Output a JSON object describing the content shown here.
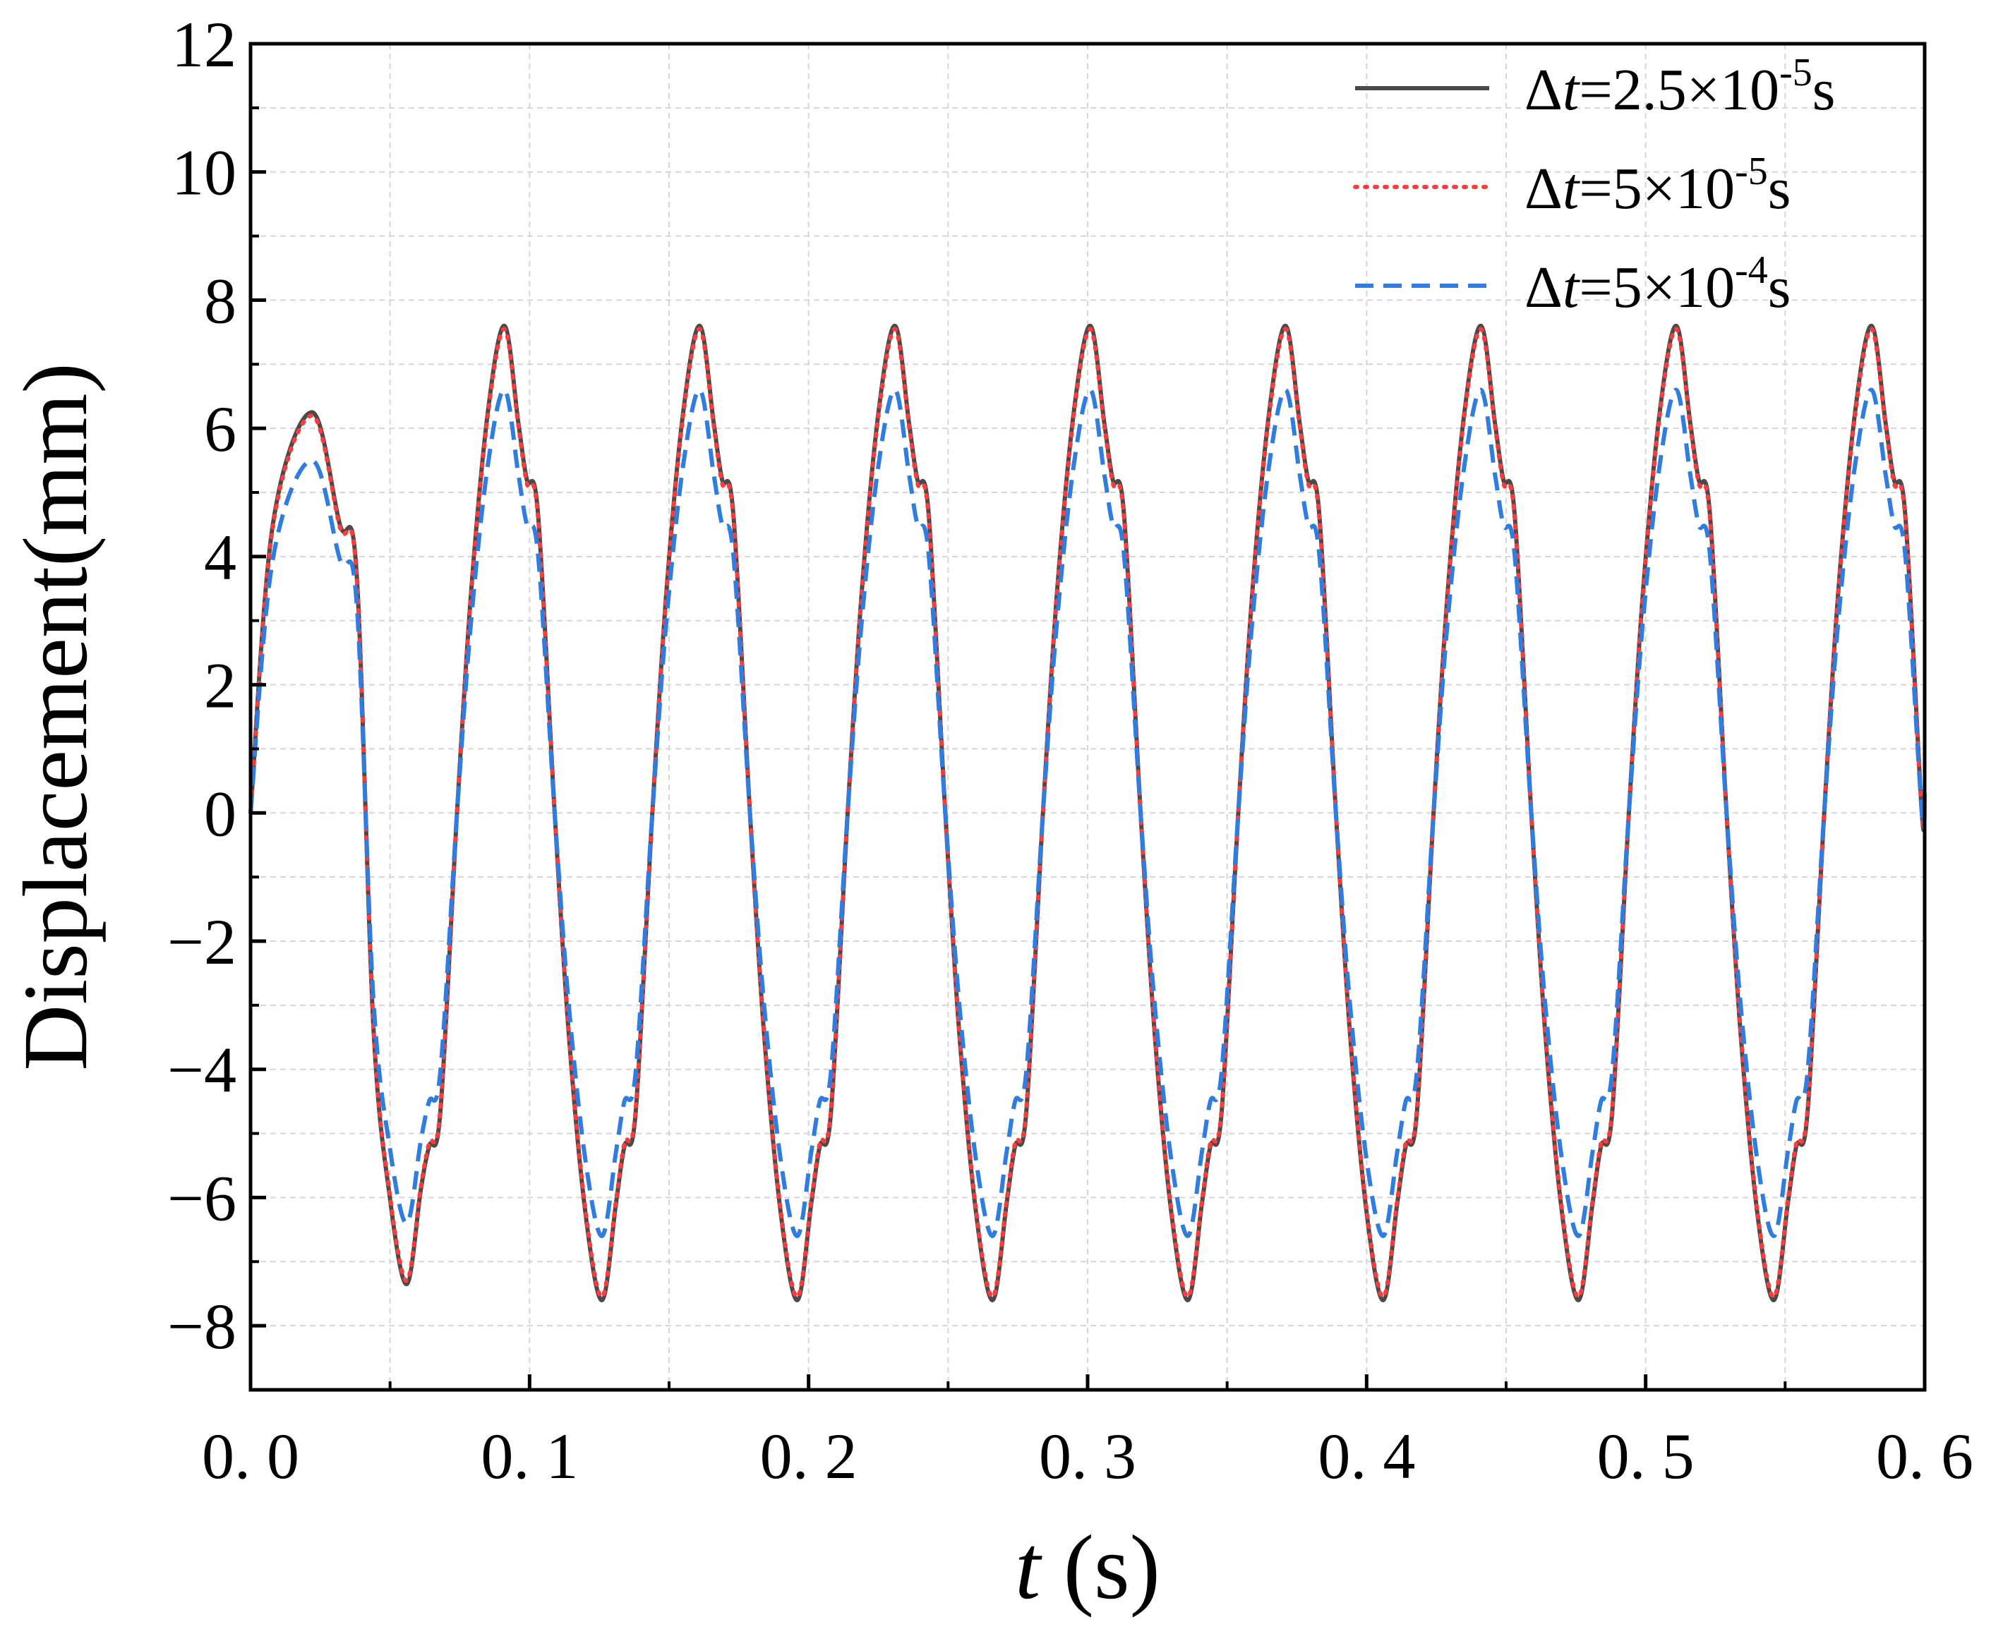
{
  "chart_data": {
    "type": "line",
    "xlabel": "t (s)",
    "xlabel_parts": {
      "var": "t",
      "unit": " (s)"
    },
    "ylabel": "Displacement(mm)",
    "xlim": [
      0.0,
      0.6
    ],
    "ylim": [
      -9,
      12
    ],
    "xticks": [
      "0. 0",
      "0. 1",
      "0. 2",
      "0. 3",
      "0. 4",
      "0. 5",
      "0. 6"
    ],
    "yticks": [
      "12",
      "10",
      "8",
      "6",
      "4",
      "2",
      "0",
      "−2",
      "−4",
      "−6",
      "−8"
    ],
    "grid": true,
    "legend_position": "top-right",
    "period": 0.07,
    "series": [
      {
        "name": "Δt=2.5×10⁻⁵s",
        "legend": {
          "delta": "Δ",
          "var": "t",
          "eq": "=2.5×10",
          "exp": "-5",
          "unit": "s"
        },
        "color": "#4a4a4a",
        "style": "solid",
        "initial_peak": [
          0.022,
          6.25
        ],
        "peaks": [
          [
            0.091,
            7.6
          ],
          [
            0.161,
            7.6
          ],
          [
            0.231,
            7.6
          ],
          [
            0.301,
            7.6
          ],
          [
            0.371,
            7.6
          ],
          [
            0.441,
            7.6
          ],
          [
            0.511,
            7.6
          ],
          [
            0.581,
            7.6
          ]
        ],
        "troughs": [
          [
            0.056,
            -7.35
          ],
          [
            0.126,
            -7.6
          ],
          [
            0.196,
            -7.6
          ],
          [
            0.266,
            -7.6
          ],
          [
            0.336,
            -7.6
          ],
          [
            0.406,
            -7.6
          ],
          [
            0.476,
            -7.6
          ],
          [
            0.546,
            -7.6
          ]
        ],
        "shoulder_after_peak": 5.2,
        "shoulder_after_trough": -5.2
      },
      {
        "name": "Δt=5×10⁻⁵s",
        "legend": {
          "delta": "Δ",
          "var": "t",
          "eq": "=5×10",
          "exp": "-5",
          "unit": "s"
        },
        "color": "#ff3b3b",
        "style": "dotted",
        "initial_peak": [
          0.022,
          6.2
        ],
        "peaks": [
          [
            0.091,
            7.55
          ],
          [
            0.161,
            7.55
          ],
          [
            0.231,
            7.55
          ],
          [
            0.301,
            7.55
          ],
          [
            0.371,
            7.55
          ],
          [
            0.441,
            7.55
          ],
          [
            0.511,
            7.55
          ],
          [
            0.581,
            7.55
          ]
        ],
        "troughs": [
          [
            0.056,
            -7.3
          ],
          [
            0.126,
            -7.55
          ],
          [
            0.196,
            -7.55
          ],
          [
            0.266,
            -7.55
          ],
          [
            0.336,
            -7.55
          ],
          [
            0.406,
            -7.55
          ],
          [
            0.476,
            -7.55
          ],
          [
            0.546,
            -7.55
          ]
        ],
        "shoulder_after_peak": 5.15,
        "shoulder_after_trough": -5.15
      },
      {
        "name": "Δt=5×10⁻⁴s",
        "legend": {
          "delta": "Δ",
          "var": "t",
          "eq": "=5×10",
          "exp": "-4",
          "unit": "s"
        },
        "color": "#2f7de1",
        "style": "dashed",
        "initial_peak": [
          0.022,
          5.5
        ],
        "peaks": [
          [
            0.091,
            6.6
          ],
          [
            0.161,
            6.6
          ],
          [
            0.231,
            6.6
          ],
          [
            0.301,
            6.6
          ],
          [
            0.371,
            6.6
          ],
          [
            0.441,
            6.6
          ],
          [
            0.511,
            6.6
          ],
          [
            0.581,
            6.6
          ]
        ],
        "troughs": [
          [
            0.056,
            -6.4
          ],
          [
            0.126,
            -6.6
          ],
          [
            0.196,
            -6.6
          ],
          [
            0.266,
            -6.6
          ],
          [
            0.336,
            -6.6
          ],
          [
            0.406,
            -6.6
          ],
          [
            0.476,
            -6.6
          ],
          [
            0.546,
            -6.6
          ]
        ],
        "shoulder_after_peak": 4.5,
        "shoulder_after_trough": -4.5
      }
    ]
  }
}
